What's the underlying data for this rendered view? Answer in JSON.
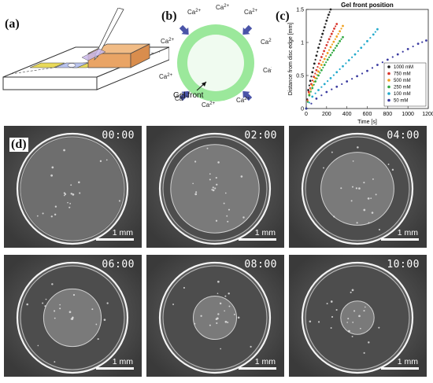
{
  "panels": {
    "a": {
      "label": "(a)"
    },
    "b": {
      "label": "(b)",
      "ion_label": "Ca",
      "ion_charge": "2+",
      "front_label": "Gel front",
      "colors": {
        "ring": "#9be89b",
        "inner": "#f0fbf0",
        "arrow": "#4a54a8"
      }
    },
    "c": {
      "label": "(c)",
      "chart_data": {
        "type": "scatter",
        "title": "Gel front position",
        "xlabel": "Time [s]",
        "ylabel": "Distance from disc edge [mm]",
        "xlim": [
          0,
          1200
        ],
        "ylim": [
          0,
          1.5
        ],
        "xticks": [
          "0",
          "200",
          "400",
          "600",
          "800",
          "1000",
          "1200"
        ],
        "yticks": [
          "0",
          "0.5",
          "1",
          "1.5"
        ],
        "legend_position": "bottom-right",
        "series": [
          {
            "name": "1000 mM",
            "color": "#222222",
            "x": [
              0,
              20,
              40,
              60,
              80,
              100,
              120,
              140,
              160,
              180,
              200,
              220,
              240
            ],
            "y": [
              0,
              0.28,
              0.42,
              0.55,
              0.68,
              0.8,
              0.92,
              1.03,
              1.13,
              1.23,
              1.33,
              1.42,
              1.5
            ]
          },
          {
            "name": "750 mM",
            "color": "#d9342b",
            "x": [
              0,
              25,
              50,
              75,
              100,
              125,
              150,
              175,
              200,
              225,
              250,
              275,
              300
            ],
            "y": [
              0,
              0.25,
              0.37,
              0.48,
              0.58,
              0.68,
              0.78,
              0.87,
              0.96,
              1.05,
              1.13,
              1.21,
              1.28
            ]
          },
          {
            "name": "500 mM",
            "color": "#f0a020",
            "x": [
              0,
              30,
              60,
              90,
              120,
              150,
              180,
              210,
              240,
              270,
              300,
              330,
              360
            ],
            "y": [
              0,
              0.22,
              0.35,
              0.46,
              0.56,
              0.66,
              0.75,
              0.84,
              0.93,
              1.01,
              1.09,
              1.17,
              1.25
            ]
          },
          {
            "name": "250 mM",
            "color": "#33aa44",
            "x": [
              0,
              30,
              60,
              90,
              120,
              150,
              180,
              210,
              240,
              270,
              300,
              330,
              360
            ],
            "y": [
              0,
              0.2,
              0.31,
              0.41,
              0.5,
              0.58,
              0.66,
              0.74,
              0.81,
              0.88,
              0.95,
              1.02,
              1.08
            ]
          },
          {
            "name": "100 mM",
            "color": "#22aacc",
            "x": [
              0,
              60,
              120,
              180,
              240,
              300,
              360,
              420,
              480,
              540,
              600,
              660,
              700
            ],
            "y": [
              0,
              0.18,
              0.28,
              0.37,
              0.46,
              0.55,
              0.64,
              0.73,
              0.82,
              0.92,
              1.02,
              1.12,
              1.2
            ]
          },
          {
            "name": "50 mM",
            "color": "#3a3aa0",
            "x": [
              0,
              100,
              200,
              300,
              400,
              500,
              600,
              700,
              800,
              900,
              1000,
              1100,
              1180
            ],
            "y": [
              0,
              0.15,
              0.25,
              0.33,
              0.41,
              0.49,
              0.57,
              0.66,
              0.74,
              0.82,
              0.9,
              0.98,
              1.03
            ]
          }
        ]
      }
    },
    "d": {
      "label": "(d)",
      "frames": [
        {
          "time": "00:00",
          "scale": "1 mm",
          "front": 0.0
        },
        {
          "time": "02:00",
          "scale": "1 mm",
          "front": 0.14
        },
        {
          "time": "04:00",
          "scale": "1 mm",
          "front": 0.28
        },
        {
          "time": "06:00",
          "scale": "1 mm",
          "front": 0.42
        },
        {
          "time": "08:00",
          "scale": "1 mm",
          "front": 0.55
        },
        {
          "time": "10:00",
          "scale": "1 mm",
          "front": 0.64
        }
      ]
    }
  }
}
